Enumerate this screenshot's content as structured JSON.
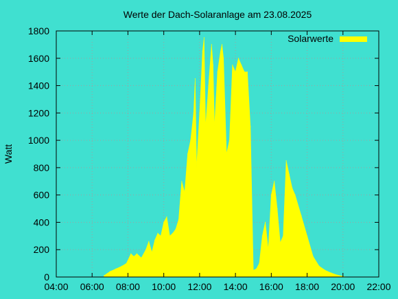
{
  "colors": {
    "background": "#40e0d0",
    "series": "#ffff00",
    "grid": "#a0a0a0"
  },
  "chart_data": {
    "type": "area",
    "title": "Werte der Dach-Solaranlage am 23.08.2025",
    "xlabel": "",
    "ylabel": "Watt",
    "xlim": [
      "04:00",
      "22:00"
    ],
    "ylim": [
      0,
      1800
    ],
    "xticks": [
      "04:00",
      "06:00",
      "08:00",
      "10:00",
      "12:00",
      "14:00",
      "16:00",
      "18:00",
      "20:00",
      "22:00"
    ],
    "yticks": [
      0,
      200,
      400,
      600,
      800,
      1000,
      1200,
      1400,
      1600,
      1800
    ],
    "grid": true,
    "legend": {
      "position": "top-right"
    },
    "series": [
      {
        "name": "Solarwerte",
        "x": [
          "06:40",
          "07:00",
          "07:20",
          "07:40",
          "07:55",
          "08:10",
          "08:20",
          "08:30",
          "08:45",
          "09:00",
          "09:10",
          "09:20",
          "09:30",
          "09:40",
          "09:50",
          "10:00",
          "10:10",
          "10:20",
          "10:30",
          "10:40",
          "10:50",
          "11:00",
          "11:10",
          "11:20",
          "11:30",
          "11:40",
          "11:45",
          "11:50",
          "12:00",
          "12:10",
          "12:15",
          "12:20",
          "12:30",
          "12:40",
          "12:45",
          "12:50",
          "13:00",
          "13:10",
          "13:15",
          "13:20",
          "13:30",
          "13:40",
          "13:50",
          "14:00",
          "14:10",
          "14:20",
          "14:30",
          "14:40",
          "14:50",
          "15:00",
          "15:10",
          "15:20",
          "15:30",
          "15:40",
          "15:50",
          "16:00",
          "16:10",
          "16:20",
          "16:30",
          "16:40",
          "16:50",
          "17:00",
          "17:10",
          "17:20",
          "17:40",
          "18:00",
          "18:20",
          "18:40",
          "19:00",
          "19:20",
          "19:40",
          "20:00",
          "20:10"
        ],
        "values": [
          10,
          40,
          60,
          80,
          100,
          170,
          150,
          170,
          140,
          200,
          260,
          180,
          270,
          320,
          300,
          400,
          440,
          300,
          320,
          350,
          420,
          700,
          620,
          900,
          1000,
          1200,
          1450,
          800,
          1200,
          1650,
          1750,
          1100,
          1400,
          1700,
          1550,
          1100,
          1500,
          1650,
          1700,
          1600,
          900,
          1000,
          1550,
          1500,
          1600,
          1550,
          1500,
          1500,
          1100,
          50,
          60,
          100,
          300,
          400,
          200,
          600,
          700,
          500,
          250,
          300,
          850,
          750,
          650,
          600,
          450,
          300,
          150,
          80,
          50,
          30,
          15,
          5,
          0
        ]
      }
    ]
  }
}
